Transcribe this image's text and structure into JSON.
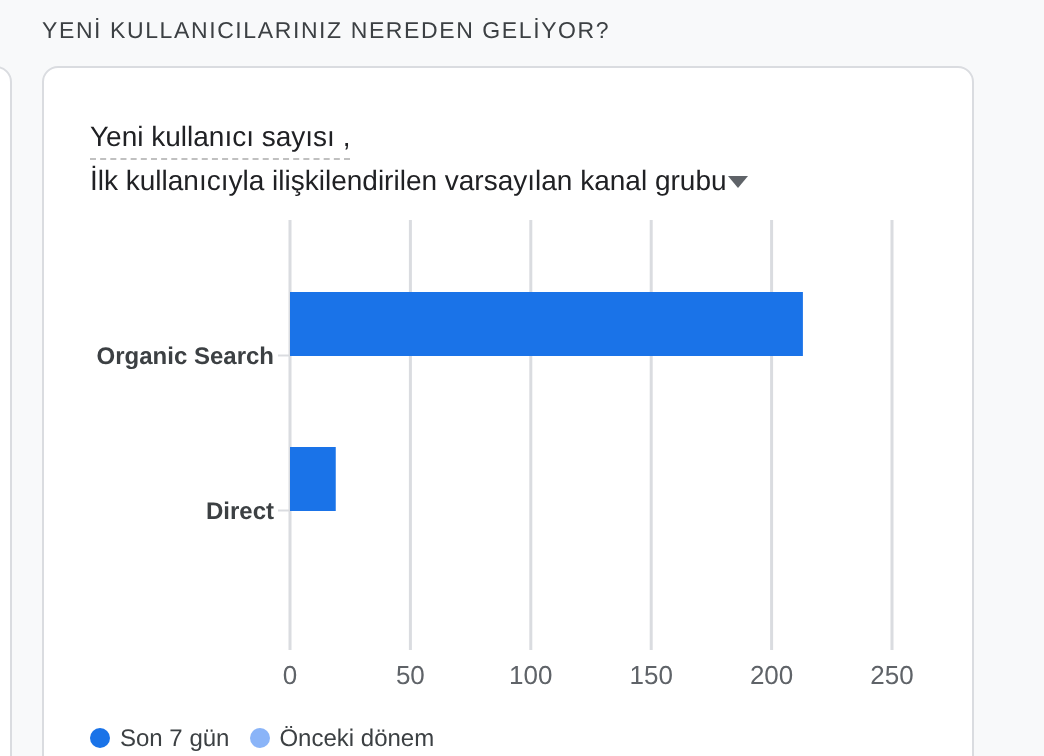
{
  "chart_data": {
    "type": "bar",
    "orientation": "horizontal",
    "title": "YENİ KULLANICILARINIZ NEREDEN GELİYOR?",
    "subtitle": "Yeni kullanıcı sayısı ,\nİlk kullanıcıyla ilişkilendirilen varsayılan kanal grubu",
    "categories": [
      "Organic Search",
      "Direct"
    ],
    "series": [
      {
        "name": "Son 7 gün",
        "color": "#1a73e8",
        "values": [
          213,
          19
        ]
      },
      {
        "name": "Önceki dönem",
        "color": "#8ab4f8",
        "values": [
          null,
          null
        ]
      }
    ],
    "xlim": [
      0,
      250
    ],
    "xticks": [
      0,
      50,
      100,
      150,
      200,
      250
    ],
    "grid": "x",
    "legend": "bottom left"
  }
}
